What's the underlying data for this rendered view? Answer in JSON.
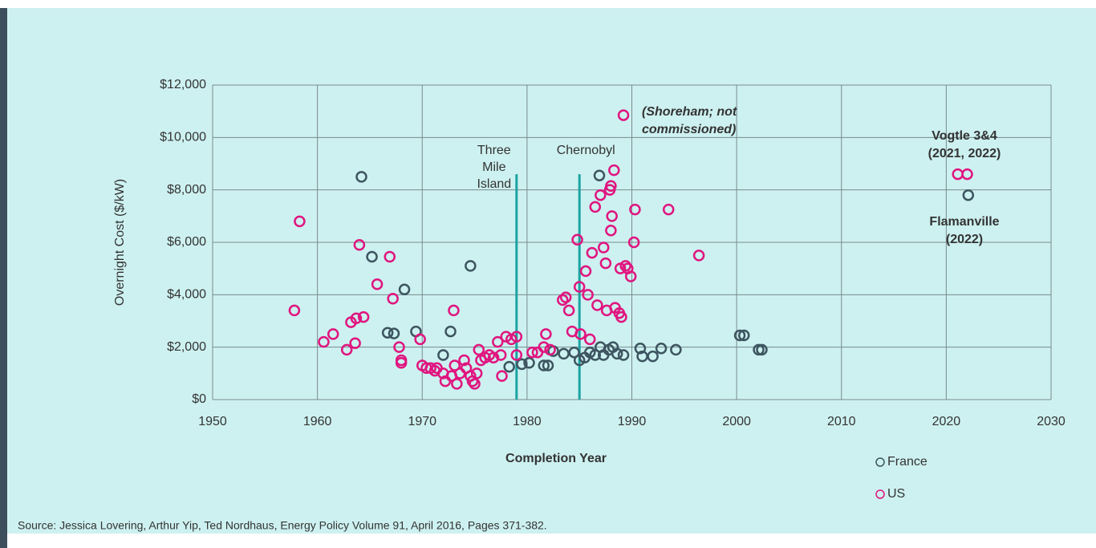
{
  "chart_data": {
    "type": "scatter",
    "xlabel": "Completion Year",
    "ylabel": "Overnight Cost  ($/kW)",
    "source": "Source: Jessica Lovering, Arthur Yip, Ted Nordhaus, Energy Policy Volume 91, April 2016, Pages 371-382.",
    "xlim": [
      1950,
      2030
    ],
    "xticks": [
      1950,
      1960,
      1970,
      1980,
      1990,
      2000,
      2010,
      2020,
      2030
    ],
    "ylim": [
      0,
      12000
    ],
    "yticks": [
      {
        "value": 0,
        "label": "$0"
      },
      {
        "value": 2000,
        "label": "$2,000"
      },
      {
        "value": 4000,
        "label": "$4,000"
      },
      {
        "value": 6000,
        "label": "$6,000"
      },
      {
        "value": 8000,
        "label": "$8,000"
      },
      {
        "value": 10000,
        "label": "$10,000"
      },
      {
        "value": 12000,
        "label": "$12,000"
      }
    ],
    "grid": true,
    "legend": "bottom-right",
    "events": [
      {
        "lines": [
          "Three",
          "Mile",
          "Island"
        ],
        "x": 1979,
        "y": 8600,
        "color": "#1aa3a3"
      },
      {
        "lines": [
          "Chernobyl"
        ],
        "x": 1985,
        "y": 8600,
        "color": "#1aa3a3"
      }
    ],
    "annotations": [
      {
        "lines": [
          "(Shoreham; not",
          "commissioned)"
        ]
      },
      {
        "lines": [
          "Vogtle 3&4",
          "(2021, 2022)"
        ]
      },
      {
        "lines": [
          "Flamanville",
          "(2022)"
        ]
      }
    ],
    "series": [
      {
        "name": "France",
        "color": "#3d5560",
        "x": [
          1964.2,
          1965.2,
          1968.3,
          1974.6,
          1966.7,
          1967.3,
          1969.4,
          1972.7,
          1972,
          1978.3,
          1979.5,
          1980.2,
          1981.6,
          1982,
          1982.5,
          1983.5,
          1984.5,
          1985,
          1985.5,
          1986,
          1986.5,
          1987,
          1987.3,
          1987.8,
          1988.2,
          1988.6,
          1989.2,
          1990.8,
          1991,
          1992,
          1992.8,
          1994.2,
          2000.3,
          2000.7,
          2002.1,
          2002.4,
          1986.9,
          2022.1
        ],
        "values": [
          8500,
          5450,
          4200,
          5100,
          2550,
          2520,
          2600,
          2600,
          1700,
          1250,
          1350,
          1400,
          1300,
          1300,
          1850,
          1750,
          1800,
          1500,
          1600,
          1800,
          1700,
          2000,
          1700,
          1900,
          2000,
          1750,
          1700,
          1950,
          1650,
          1650,
          1950,
          1900,
          2450,
          2450,
          1900,
          1900,
          8550,
          7800
        ]
      },
      {
        "name": "US",
        "color": "#e0157f",
        "x": [
          1957.8,
          1958.3,
          1960.6,
          1961.5,
          1962.8,
          1963.2,
          1963.7,
          1963.6,
          1964,
          1964.4,
          1965.7,
          1966.9,
          1967.2,
          1967.8,
          1968,
          1968,
          1969.8,
          1970,
          1970.4,
          1970.8,
          1971.2,
          1971.4,
          1972,
          1972.2,
          1972.8,
          1973,
          1973.1,
          1973.3,
          1973.6,
          1974,
          1974.2,
          1974.6,
          1974.8,
          1975,
          1975.2,
          1975.4,
          1975.6,
          1976,
          1976.4,
          1976.8,
          1977.2,
          1977.5,
          1977.6,
          1978,
          1978.5,
          1979,
          1979,
          1980.5,
          1981,
          1981.6,
          1981.8,
          1982.2,
          1983.4,
          1983.7,
          1984,
          1984.3,
          1984.8,
          1985,
          1985.1,
          1985.6,
          1985.8,
          1986,
          1986.2,
          1986.5,
          1986.7,
          1987,
          1987.3,
          1987.5,
          1987.6,
          1987.9,
          1988,
          1988.1,
          1988,
          1988.3,
          1988.4,
          1988.8,
          1988.9,
          1989,
          1989.2,
          1989.4,
          1989.6,
          1989.9,
          1990.3,
          1990.2,
          1993.5,
          1996.4,
          2021.1,
          2022
        ],
        "values": [
          3400,
          6800,
          2200,
          2500,
          1900,
          2950,
          3100,
          2150,
          5900,
          3150,
          4400,
          5450,
          3850,
          2000,
          1500,
          1400,
          2300,
          1300,
          1200,
          1200,
          1100,
          1200,
          1000,
          700,
          900,
          3400,
          1300,
          600,
          1000,
          1500,
          1200,
          900,
          700,
          600,
          1000,
          1900,
          1500,
          1600,
          1700,
          1600,
          2200,
          1700,
          900,
          2400,
          2300,
          2400,
          1700,
          1800,
          1800,
          2000,
          2500,
          1900,
          3800,
          3900,
          3400,
          2600,
          6100,
          4300,
          2500,
          4900,
          4000,
          2300,
          5600,
          7350,
          3600,
          7800,
          5800,
          5200,
          3400,
          8000,
          8150,
          7000,
          6450,
          8750,
          3500,
          3300,
          5000,
          3150,
          10850,
          5100,
          5000,
          4700,
          7250,
          6000,
          7250,
          5500,
          8600,
          8600
        ]
      }
    ]
  }
}
